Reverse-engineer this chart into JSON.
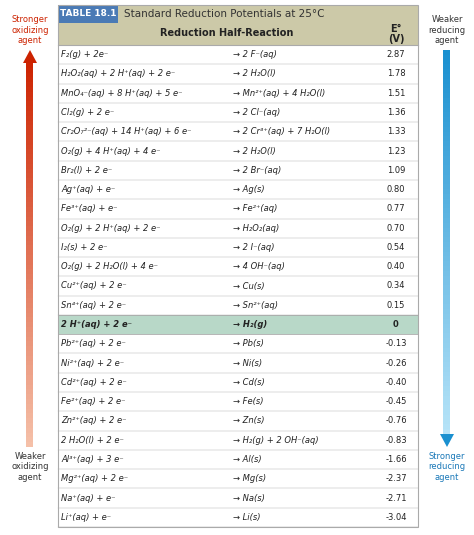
{
  "title": "Standard Reduction Potentials at 25°C",
  "table_label": "TABLE 18.1",
  "col_header1": "Reduction Half-Reaction",
  "col_header2": "E°\n(V)",
  "header_bg": "#ccc9a8",
  "table_label_bg": "#4a7ab5",
  "highlight_row_bg": "#b8d8c8",
  "rows": [
    [
      "F₂(g) + 2e⁻",
      "→ 2 F⁻(aq)",
      "2.87"
    ],
    [
      "H₂O₂(aq) + 2 H⁺(aq) + 2 e⁻",
      "→ 2 H₂O(l)",
      "1.78"
    ],
    [
      "MnO₄⁻(aq) + 8 H⁺(aq) + 5 e⁻",
      "→ Mn²⁺(aq) + 4 H₂O(l)",
      "1.51"
    ],
    [
      "Cl₂(g) + 2 e⁻",
      "→ 2 Cl⁻(aq)",
      "1.36"
    ],
    [
      "Cr₂O₇²⁻(aq) + 14 H⁺(aq) + 6 e⁻",
      "→ 2 Cr³⁺(aq) + 7 H₂O(l)",
      "1.33"
    ],
    [
      "O₂(g) + 4 H⁺(aq) + 4 e⁻",
      "→ 2 H₂O(l)",
      "1.23"
    ],
    [
      "Br₂(l) + 2 e⁻",
      "→ 2 Br⁻(aq)",
      "1.09"
    ],
    [
      "Ag⁺(aq) + e⁻",
      "→ Ag(s)",
      "0.80"
    ],
    [
      "Fe³⁺(aq) + e⁻",
      "→ Fe²⁺(aq)",
      "0.77"
    ],
    [
      "O₂(g) + 2 H⁺(aq) + 2 e⁻",
      "→ H₂O₂(aq)",
      "0.70"
    ],
    [
      "I₂(s) + 2 e⁻",
      "→ 2 I⁻(aq)",
      "0.54"
    ],
    [
      "O₂(g) + 2 H₂O(l) + 4 e⁻",
      "→ 4 OH⁻(aq)",
      "0.40"
    ],
    [
      "Cu²⁺(aq) + 2 e⁻",
      "→ Cu(s)",
      "0.34"
    ],
    [
      "Sn⁴⁺(aq) + 2 e⁻",
      "→ Sn²⁺(aq)",
      "0.15"
    ],
    [
      "2 H⁺(aq) + 2 e⁻",
      "→ H₂(g)",
      "0"
    ],
    [
      "Pb²⁺(aq) + 2 e⁻",
      "→ Pb(s)",
      "-0.13"
    ],
    [
      "Ni²⁺(aq) + 2 e⁻",
      "→ Ni(s)",
      "-0.26"
    ],
    [
      "Cd²⁺(aq) + 2 e⁻",
      "→ Cd(s)",
      "-0.40"
    ],
    [
      "Fe²⁺(aq) + 2 e⁻",
      "→ Fe(s)",
      "-0.45"
    ],
    [
      "Zn²⁺(aq) + 2 e⁻",
      "→ Zn(s)",
      "-0.76"
    ],
    [
      "2 H₂O(l) + 2 e⁻",
      "→ H₂(g) + 2 OH⁻(aq)",
      "-0.83"
    ],
    [
      "Al³⁺(aq) + 3 e⁻",
      "→ Al(s)",
      "-1.66"
    ],
    [
      "Mg²⁺(aq) + 2 e⁻",
      "→ Mg(s)",
      "-2.37"
    ],
    [
      "Na⁺(aq) + e⁻",
      "→ Na(s)",
      "-2.71"
    ],
    [
      "Li⁺(aq) + e⁻",
      "→ Li(s)",
      "-3.04"
    ]
  ],
  "highlight_row_idx": 14,
  "left_top_label": "Stronger\noxidizing\nagent",
  "left_bottom_label": "Weaker\noxidizing\nagent",
  "right_top_label": "Weaker\nreducing\nagent",
  "right_bottom_label": "Stronger\nreducing\nagent",
  "arrow_red_dark": "#cc2200",
  "arrow_red_light": "#f5c0a8",
  "arrow_blue_dark": "#1a90d0",
  "arrow_blue_light": "#b8e4f8",
  "bg_color": "#ffffff",
  "row_bg": "#ffffff",
  "border_color": "#aaaaaa",
  "text_color": "#222222",
  "red_label_color": "#cc2200",
  "blue_label_color": "#1a78b8"
}
